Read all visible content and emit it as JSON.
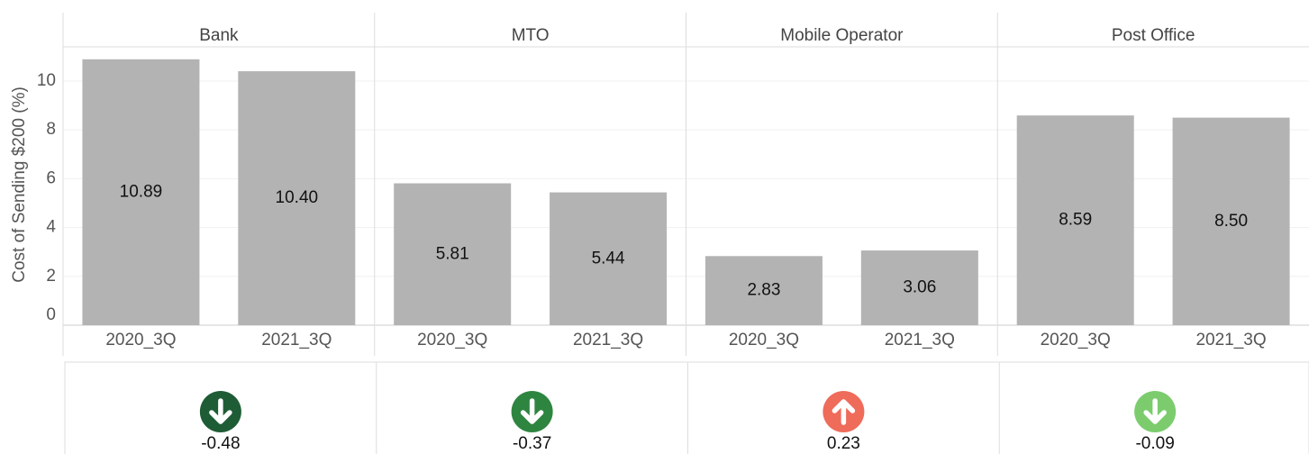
{
  "chart_data": {
    "type": "bar",
    "y_label": "Cost of Sending $200 (%)",
    "ylim": [
      0,
      11.4
    ],
    "yticks": [
      0,
      2,
      4,
      6,
      8,
      10
    ],
    "grid": true,
    "color": "#b3b3b3",
    "panels": [
      {
        "name": "Bank",
        "categories": [
          "2020_3Q",
          "2021_3Q"
        ],
        "values": [
          10.89,
          10.4
        ],
        "value_labels": [
          "10.89",
          "10.40"
        ],
        "change": -0.48,
        "change_color": "#1e5c35"
      },
      {
        "name": "MTO",
        "categories": [
          "2020_3Q",
          "2021_3Q"
        ],
        "values": [
          5.81,
          5.44
        ],
        "value_labels": [
          "5.81",
          "5.44"
        ],
        "change": -0.37,
        "change_color": "#2e8540"
      },
      {
        "name": "Mobile Operator",
        "categories": [
          "2020_3Q",
          "2021_3Q"
        ],
        "values": [
          2.83,
          3.06
        ],
        "value_labels": [
          "2.83",
          "3.06"
        ],
        "change": 0.23,
        "change_color": "#ef6b5a"
      },
      {
        "name": "Post Office",
        "categories": [
          "2020_3Q",
          "2021_3Q"
        ],
        "values": [
          8.59,
          8.5
        ],
        "value_labels": [
          "8.59",
          "8.50"
        ],
        "change": -0.09,
        "change_color": "#7ccc6e"
      }
    ]
  }
}
